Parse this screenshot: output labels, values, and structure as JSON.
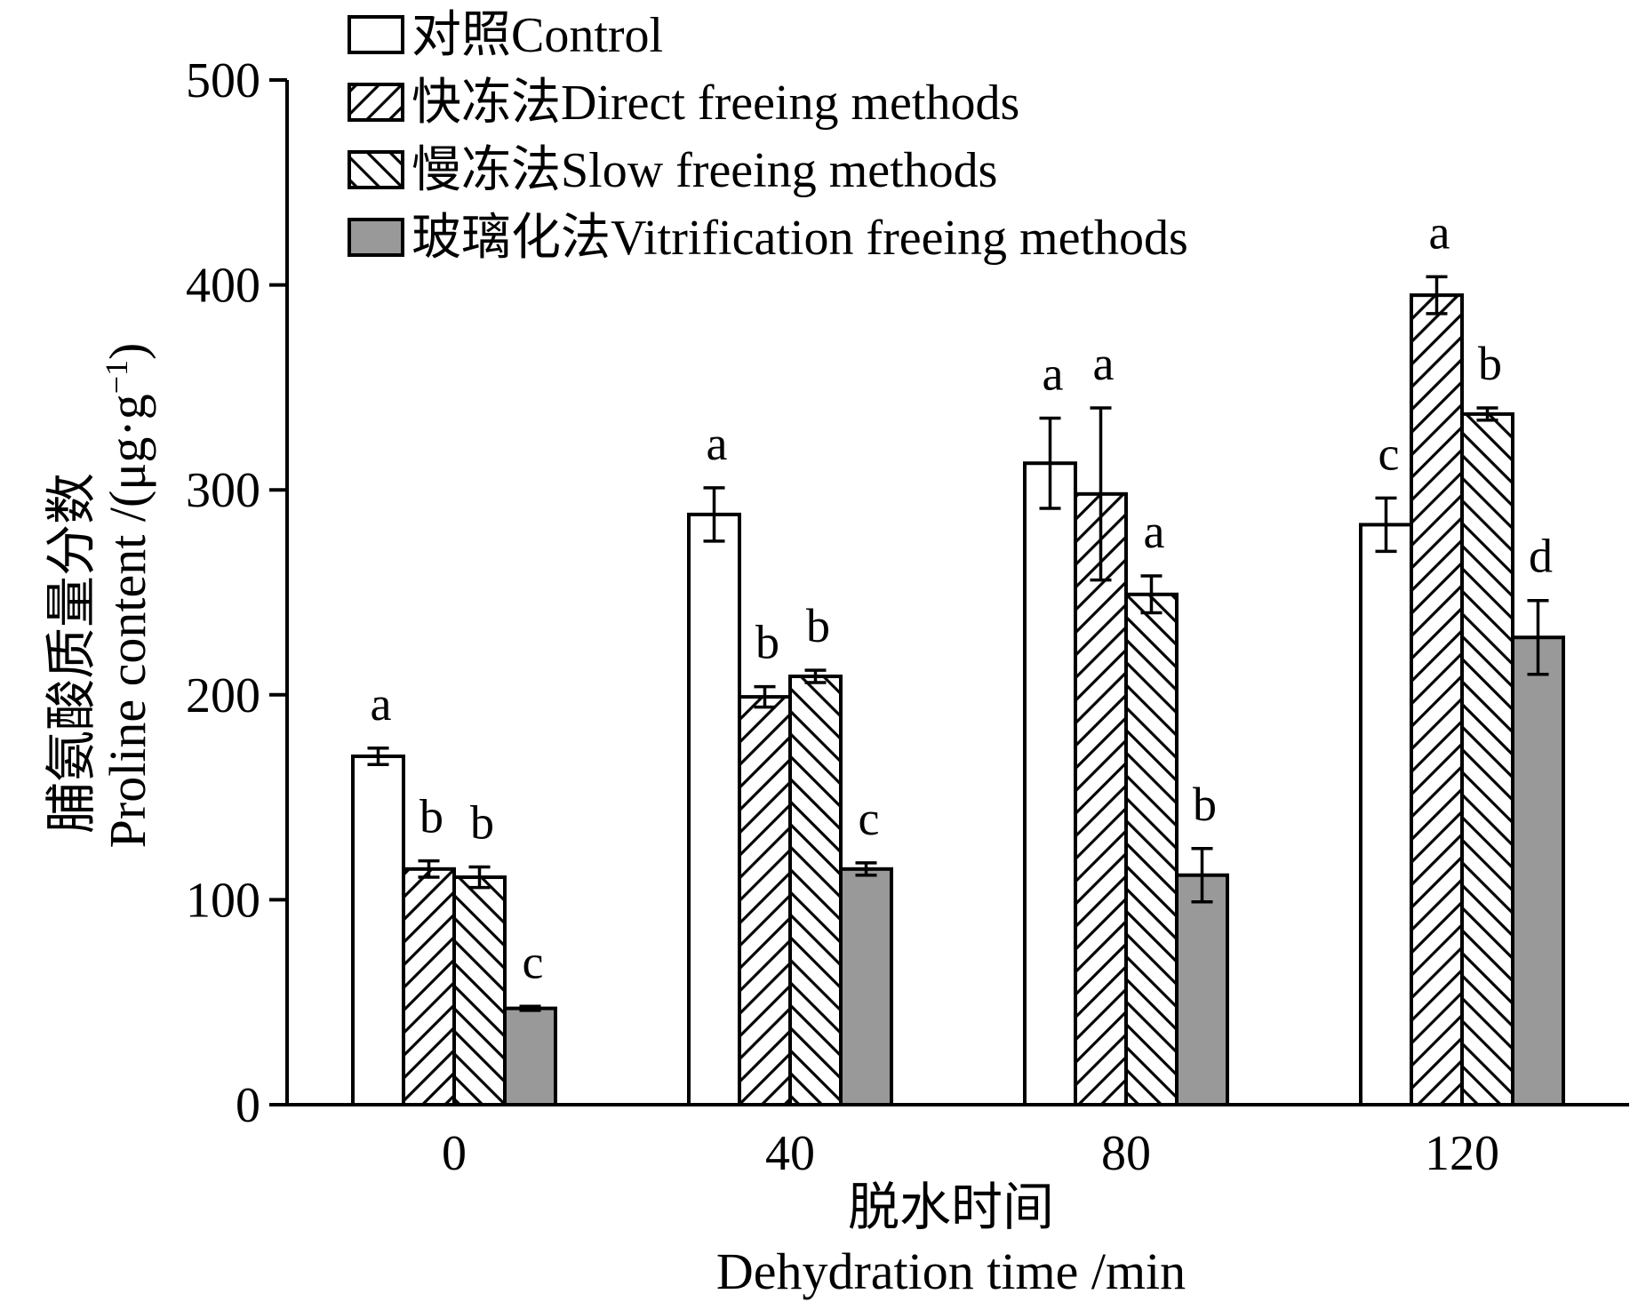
{
  "chart_data": {
    "type": "bar",
    "title": "",
    "xlabel_cn": "脱水时间",
    "xlabel_en": "Dehydration time /min",
    "ylabel_cn": "脯氨酸质量分数",
    "ylabel_en": "Proline content /(μg·g",
    "ylabel_sup": "−1",
    "ylabel_close": ")",
    "ylim": [
      0,
      500
    ],
    "yticks": [
      "0",
      "100",
      "200",
      "300",
      "400",
      "500"
    ],
    "categories": [
      "0",
      "40",
      "80",
      "120"
    ],
    "legend_position": "top-left",
    "series": [
      {
        "name": "对照Control",
        "fill": "white",
        "values": [
          170,
          288,
          313,
          283
        ],
        "errors": [
          4,
          13,
          22,
          13
        ],
        "letters": [
          "a",
          "a",
          "a",
          "c"
        ]
      },
      {
        "name": "快冻法Direct freeing methods",
        "fill": "hatch-forward",
        "values": [
          115,
          199,
          298,
          395
        ],
        "errors": [
          4,
          5,
          42,
          9
        ],
        "letters": [
          "b",
          "b",
          "a",
          "a"
        ]
      },
      {
        "name": "慢冻法Slow freeing methods",
        "fill": "hatch-back",
        "values": [
          111,
          209,
          249,
          337
        ],
        "errors": [
          5,
          3,
          9,
          3
        ],
        "letters": [
          "b",
          "b",
          "a",
          "b"
        ]
      },
      {
        "name": "玻璃化法Vitrification freeing methods",
        "fill": "gray",
        "values": [
          47,
          115,
          112,
          228
        ],
        "errors": [
          1,
          3,
          13,
          18
        ],
        "letters": [
          "c",
          "c",
          "b",
          "d"
        ]
      }
    ],
    "colors": {
      "gray": "#999999",
      "stroke": "#000000",
      "white": "#ffffff"
    }
  }
}
